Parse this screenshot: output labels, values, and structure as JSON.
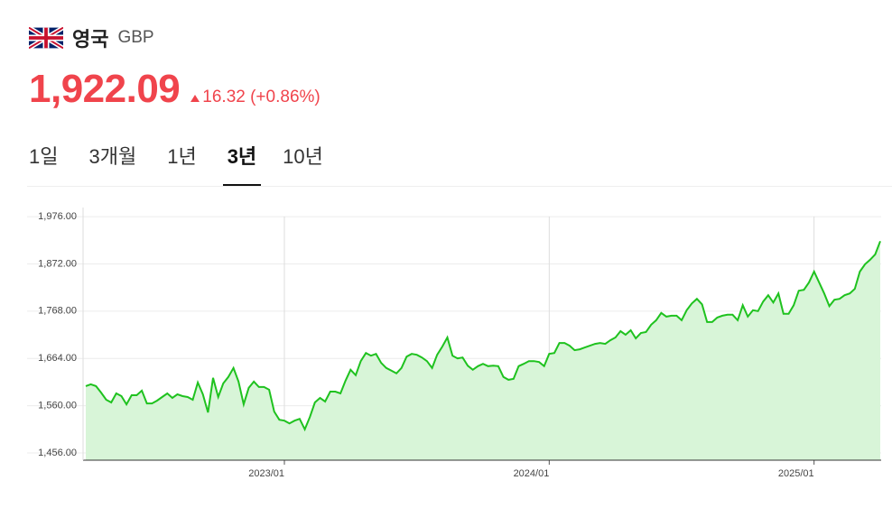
{
  "header": {
    "country": "영국",
    "currency": "GBP",
    "price": "1,922.09",
    "change": "16.32",
    "change_pct": "(+0.86%)"
  },
  "tabs": {
    "items": [
      "1일",
      "3개월",
      "1년",
      "3년",
      "10년"
    ],
    "active": 3
  },
  "chart_data": {
    "type": "area",
    "color": "#1fc21f",
    "fill": "#d8f5d8",
    "grid": true,
    "ylim": [
      1440,
      1996
    ],
    "yticks": [
      {
        "value": 1456,
        "label": "1,456.00"
      },
      {
        "value": 1560,
        "label": "1,560.00"
      },
      {
        "value": 1664,
        "label": "1,664.00"
      },
      {
        "value": 1768,
        "label": "1,768.00"
      },
      {
        "value": 1872,
        "label": "1,872.00"
      },
      {
        "value": 1976,
        "label": "1,976.00"
      }
    ],
    "categories": [
      null,
      null,
      null,
      null,
      null,
      null,
      null,
      null,
      null,
      null,
      null,
      null,
      null,
      null,
      null,
      null,
      null,
      null,
      null,
      null,
      null,
      null,
      null,
      null,
      null,
      null,
      null,
      null,
      null,
      null,
      null,
      null,
      null,
      null,
      null,
      null,
      null,
      null,
      null,
      "2023/01",
      null,
      null,
      null,
      null,
      null,
      null,
      null,
      null,
      null,
      null,
      null,
      null,
      null,
      null,
      null,
      null,
      null,
      null,
      null,
      null,
      null,
      null,
      null,
      null,
      null,
      null,
      null,
      null,
      null,
      null,
      null,
      null,
      null,
      null,
      null,
      null,
      null,
      null,
      null,
      null,
      null,
      null,
      null,
      null,
      null,
      null,
      null,
      null,
      null,
      null,
      null,
      "2024/01",
      null,
      null,
      null,
      null,
      null,
      null,
      null,
      null,
      null,
      null,
      null,
      null,
      null,
      null,
      null,
      null,
      null,
      null,
      null,
      null,
      null,
      null,
      null,
      null,
      null,
      null,
      null,
      null,
      null,
      null,
      null,
      null,
      null,
      null,
      null,
      null,
      null,
      null,
      null,
      null,
      null,
      null,
      null,
      null,
      null,
      null,
      null,
      null,
      null,
      null,
      null,
      "2025/01",
      null,
      null,
      null,
      null,
      null,
      null,
      null,
      null,
      null,
      null,
      null,
      null,
      null
    ],
    "values": [
      1603,
      1607,
      1603,
      1589,
      1573,
      1567,
      1587,
      1581,
      1563,
      1583,
      1583,
      1593,
      1565,
      1565,
      1571,
      1579,
      1587,
      1577,
      1585,
      1581,
      1579,
      1573,
      1611,
      1585,
      1545,
      1621,
      1579,
      1609,
      1623,
      1643,
      1613,
      1563,
      1599,
      1613,
      1601,
      1601,
      1595,
      1547,
      1529,
      1527,
      1521,
      1527,
      1531,
      1508,
      1535,
      1567,
      1577,
      1569,
      1591,
      1591,
      1587,
      1615,
      1639,
      1627,
      1658,
      1676,
      1670,
      1674,
      1654,
      1643,
      1637,
      1631,
      1643,
      1668,
      1674,
      1672,
      1666,
      1658,
      1643,
      1672,
      1690,
      1710,
      1670,
      1664,
      1666,
      1648,
      1639,
      1647,
      1652,
      1647,
      1648,
      1647,
      1623,
      1617,
      1619,
      1647,
      1652,
      1658,
      1658,
      1656,
      1647,
      1674,
      1676,
      1698,
      1698,
      1692,
      1682,
      1684,
      1688,
      1692,
      1696,
      1698,
      1696,
      1704,
      1710,
      1724,
      1716,
      1726,
      1708,
      1720,
      1722,
      1738,
      1748,
      1764,
      1756,
      1758,
      1758,
      1748,
      1770,
      1785,
      1795,
      1783,
      1744,
      1744,
      1754,
      1758,
      1760,
      1760,
      1748,
      1781,
      1756,
      1770,
      1768,
      1789,
      1803,
      1787,
      1807,
      1762,
      1762,
      1781,
      1813,
      1815,
      1831,
      1855,
      1831,
      1807,
      1779,
      1793,
      1795,
      1803,
      1807,
      1817,
      1855,
      1871,
      1881,
      1893,
      1922
    ]
  }
}
